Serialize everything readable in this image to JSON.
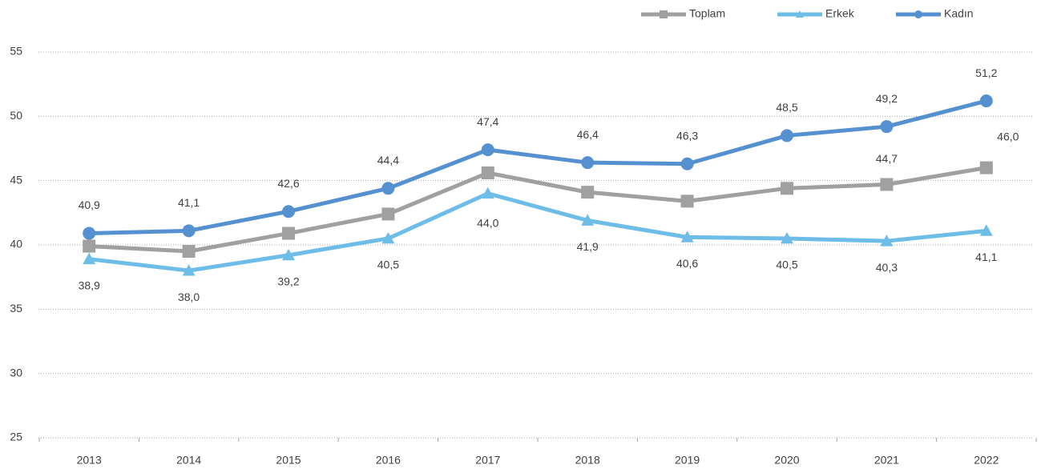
{
  "chart_data": {
    "type": "line",
    "categories": [
      "2013",
      "2014",
      "2015",
      "2016",
      "2017",
      "2018",
      "2019",
      "2020",
      "2021",
      "2022"
    ],
    "series": [
      {
        "name": "Toplam",
        "color": "#a0a0a0",
        "marker": "square",
        "values": [
          39.9,
          39.5,
          40.9,
          42.4,
          45.6,
          44.1,
          43.4,
          44.4,
          44.7,
          46.0
        ],
        "value_labels": [
          null,
          null,
          null,
          null,
          null,
          null,
          null,
          null,
          "44,7",
          "46,0"
        ]
      },
      {
        "name": "Erkek",
        "color": "#6dbde8",
        "marker": "triangle",
        "values": [
          38.9,
          38.0,
          39.2,
          40.5,
          44.0,
          41.9,
          40.6,
          40.5,
          40.3,
          41.1
        ],
        "value_labels": [
          "38,9",
          "38,0",
          "39,2",
          "40,5",
          "44,0",
          "41,9",
          "40,6",
          "40,5",
          "40,3",
          "41,1"
        ]
      },
      {
        "name": "Kadın",
        "color": "#5591d0",
        "marker": "circle",
        "values": [
          40.9,
          41.1,
          42.6,
          44.4,
          47.4,
          46.4,
          46.3,
          48.5,
          49.2,
          51.2
        ],
        "value_labels": [
          "40,9",
          "41,1",
          "42,6",
          "44,4",
          "47,4",
          "46,4",
          "46,3",
          "48,5",
          "49,2",
          "51,2"
        ]
      }
    ],
    "ylim": [
      25,
      55
    ],
    "yticks": [
      25,
      30,
      35,
      40,
      45,
      50,
      55
    ],
    "grid": true,
    "legend": "top-right"
  }
}
